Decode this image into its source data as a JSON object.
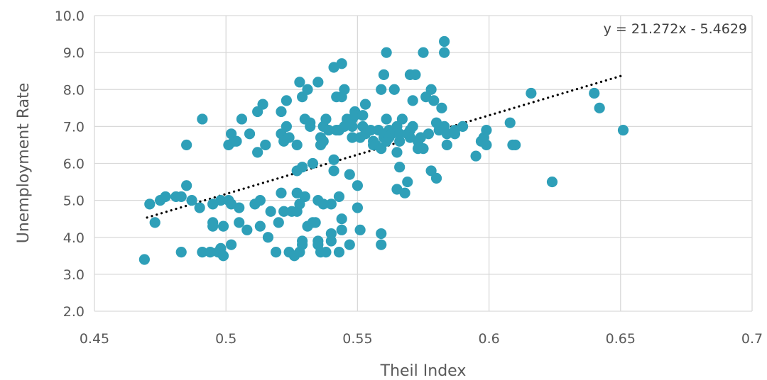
{
  "chart_data": {
    "type": "scatter",
    "title": "",
    "xlabel": "Theil Index",
    "ylabel": "Unemployment Rate",
    "xlim": [
      0.45,
      0.7
    ],
    "ylim": [
      2.0,
      10.0
    ],
    "x_ticks": [
      "0.45",
      "0.5",
      "0.55",
      "0.6",
      "0.65",
      "0.7"
    ],
    "y_ticks": [
      "2.0",
      "3.0",
      "4.0",
      "5.0",
      "6.0",
      "7.0",
      "8.0",
      "9.0",
      "10.0"
    ],
    "grid": "vertical and horizontal major gridlines",
    "legend": "none",
    "trendline": {
      "type": "linear",
      "style": "dotted",
      "slope": 21.272,
      "intercept": -5.4629,
      "x_range": [
        0.47,
        0.651
      ],
      "equation_label": "y = 21.272x - 5.4629",
      "label_position": "top-right"
    },
    "series": [
      {
        "color": "#2E9FB8",
        "points": [
          [
            0.469,
            3.4
          ],
          [
            0.471,
            4.9
          ],
          [
            0.473,
            4.4
          ],
          [
            0.475,
            5.0
          ],
          [
            0.477,
            5.1
          ],
          [
            0.481,
            5.1
          ],
          [
            0.483,
            3.6
          ],
          [
            0.483,
            5.1
          ],
          [
            0.485,
            6.5
          ],
          [
            0.485,
            5.4
          ],
          [
            0.487,
            5.0
          ],
          [
            0.49,
            4.8
          ],
          [
            0.491,
            7.2
          ],
          [
            0.491,
            3.6
          ],
          [
            0.494,
            3.6
          ],
          [
            0.495,
            4.9
          ],
          [
            0.495,
            4.4
          ],
          [
            0.495,
            4.3
          ],
          [
            0.497,
            3.6
          ],
          [
            0.498,
            3.7
          ],
          [
            0.498,
            5.0
          ],
          [
            0.499,
            3.5
          ],
          [
            0.499,
            4.3
          ],
          [
            0.501,
            6.5
          ],
          [
            0.501,
            5.0
          ],
          [
            0.502,
            4.9
          ],
          [
            0.502,
            6.8
          ],
          [
            0.502,
            3.8
          ],
          [
            0.503,
            6.6
          ],
          [
            0.504,
            6.6
          ],
          [
            0.505,
            4.4
          ],
          [
            0.505,
            4.8
          ],
          [
            0.506,
            7.2
          ],
          [
            0.508,
            4.2
          ],
          [
            0.509,
            6.8
          ],
          [
            0.511,
            4.9
          ],
          [
            0.512,
            6.3
          ],
          [
            0.512,
            7.4
          ],
          [
            0.513,
            5.0
          ],
          [
            0.513,
            4.3
          ],
          [
            0.514,
            7.6
          ],
          [
            0.515,
            6.5
          ],
          [
            0.516,
            4.0
          ],
          [
            0.517,
            4.7
          ],
          [
            0.519,
            3.6
          ],
          [
            0.52,
            4.4
          ],
          [
            0.521,
            5.2
          ],
          [
            0.521,
            6.8
          ],
          [
            0.521,
            7.4
          ],
          [
            0.522,
            4.7
          ],
          [
            0.522,
            6.6
          ],
          [
            0.523,
            7.7
          ],
          [
            0.523,
            7.0
          ],
          [
            0.524,
            3.6
          ],
          [
            0.524,
            6.7
          ],
          [
            0.525,
            4.7
          ],
          [
            0.526,
            3.5
          ],
          [
            0.527,
            4.7
          ],
          [
            0.527,
            5.2
          ],
          [
            0.527,
            6.5
          ],
          [
            0.527,
            5.8
          ],
          [
            0.528,
            3.6
          ],
          [
            0.528,
            4.9
          ],
          [
            0.528,
            8.2
          ],
          [
            0.529,
            5.9
          ],
          [
            0.529,
            3.8
          ],
          [
            0.529,
            7.8
          ],
          [
            0.529,
            3.9
          ],
          [
            0.53,
            5.1
          ],
          [
            0.53,
            7.2
          ],
          [
            0.531,
            8.0
          ],
          [
            0.531,
            4.3
          ],
          [
            0.532,
            7.1
          ],
          [
            0.532,
            7.0
          ],
          [
            0.533,
            4.4
          ],
          [
            0.533,
            6.0
          ],
          [
            0.534,
            4.4
          ],
          [
            0.535,
            3.9
          ],
          [
            0.535,
            3.8
          ],
          [
            0.535,
            5.0
          ],
          [
            0.535,
            8.2
          ],
          [
            0.536,
            3.6
          ],
          [
            0.536,
            6.7
          ],
          [
            0.536,
            6.5
          ],
          [
            0.537,
            4.9
          ],
          [
            0.537,
            7.0
          ],
          [
            0.537,
            6.6
          ],
          [
            0.538,
            7.2
          ],
          [
            0.538,
            3.6
          ],
          [
            0.539,
            6.9
          ],
          [
            0.54,
            4.9
          ],
          [
            0.54,
            4.1
          ],
          [
            0.54,
            3.9
          ],
          [
            0.541,
            5.8
          ],
          [
            0.541,
            6.1
          ],
          [
            0.541,
            8.6
          ],
          [
            0.542,
            7.8
          ],
          [
            0.542,
            6.9
          ],
          [
            0.543,
            6.9
          ],
          [
            0.543,
            5.1
          ],
          [
            0.543,
            3.6
          ],
          [
            0.544,
            8.7
          ],
          [
            0.544,
            7.8
          ],
          [
            0.544,
            4.5
          ],
          [
            0.544,
            4.2
          ],
          [
            0.545,
            7.0
          ],
          [
            0.545,
            8.0
          ],
          [
            0.546,
            7.2
          ],
          [
            0.547,
            3.8
          ],
          [
            0.547,
            5.7
          ],
          [
            0.548,
            6.7
          ],
          [
            0.548,
            7.0
          ],
          [
            0.548,
            7.2
          ],
          [
            0.549,
            7.4
          ],
          [
            0.549,
            7.3
          ],
          [
            0.55,
            4.8
          ],
          [
            0.55,
            5.4
          ],
          [
            0.551,
            4.2
          ],
          [
            0.551,
            6.7
          ],
          [
            0.552,
            7.0
          ],
          [
            0.552,
            7.3
          ],
          [
            0.553,
            7.6
          ],
          [
            0.553,
            6.8
          ],
          [
            0.555,
            6.9
          ],
          [
            0.556,
            6.6
          ],
          [
            0.556,
            6.5
          ],
          [
            0.557,
            6.5
          ],
          [
            0.558,
            6.9
          ],
          [
            0.559,
            8.0
          ],
          [
            0.559,
            6.4
          ],
          [
            0.559,
            4.1
          ],
          [
            0.559,
            3.8
          ],
          [
            0.56,
            6.7
          ],
          [
            0.56,
            8.4
          ],
          [
            0.56,
            6.8
          ],
          [
            0.561,
            9.0
          ],
          [
            0.561,
            7.2
          ],
          [
            0.561,
            6.6
          ],
          [
            0.562,
            6.9
          ],
          [
            0.562,
            6.7
          ],
          [
            0.563,
            6.8
          ],
          [
            0.564,
            6.9
          ],
          [
            0.564,
            8.0
          ],
          [
            0.565,
            6.3
          ],
          [
            0.565,
            7.0
          ],
          [
            0.565,
            5.3
          ],
          [
            0.566,
            6.6
          ],
          [
            0.566,
            5.9
          ],
          [
            0.566,
            6.8
          ],
          [
            0.567,
            7.2
          ],
          [
            0.568,
            5.2
          ],
          [
            0.569,
            5.5
          ],
          [
            0.569,
            6.8
          ],
          [
            0.57,
            8.4
          ],
          [
            0.57,
            6.9
          ],
          [
            0.57,
            6.7
          ],
          [
            0.571,
            7.7
          ],
          [
            0.571,
            7.0
          ],
          [
            0.572,
            8.4
          ],
          [
            0.573,
            6.6
          ],
          [
            0.573,
            6.4
          ],
          [
            0.574,
            6.7
          ],
          [
            0.575,
            9.0
          ],
          [
            0.575,
            6.4
          ],
          [
            0.576,
            7.8
          ],
          [
            0.577,
            6.8
          ],
          [
            0.578,
            8.0
          ],
          [
            0.578,
            5.8
          ],
          [
            0.579,
            7.7
          ],
          [
            0.58,
            7.1
          ],
          [
            0.58,
            5.6
          ],
          [
            0.581,
            6.9
          ],
          [
            0.582,
            7.5
          ],
          [
            0.583,
            9.3
          ],
          [
            0.583,
            9.0
          ],
          [
            0.583,
            7.0
          ],
          [
            0.584,
            6.5
          ],
          [
            0.584,
            6.8
          ],
          [
            0.587,
            6.9
          ],
          [
            0.587,
            6.8
          ],
          [
            0.59,
            7.0
          ],
          [
            0.595,
            6.2
          ],
          [
            0.597,
            6.6
          ],
          [
            0.598,
            6.7
          ],
          [
            0.599,
            6.5
          ],
          [
            0.599,
            6.9
          ],
          [
            0.608,
            7.1
          ],
          [
            0.609,
            6.5
          ],
          [
            0.61,
            6.5
          ],
          [
            0.616,
            7.9
          ],
          [
            0.624,
            5.5
          ],
          [
            0.64,
            7.9
          ],
          [
            0.642,
            7.5
          ],
          [
            0.651,
            6.9
          ]
        ]
      }
    ]
  }
}
